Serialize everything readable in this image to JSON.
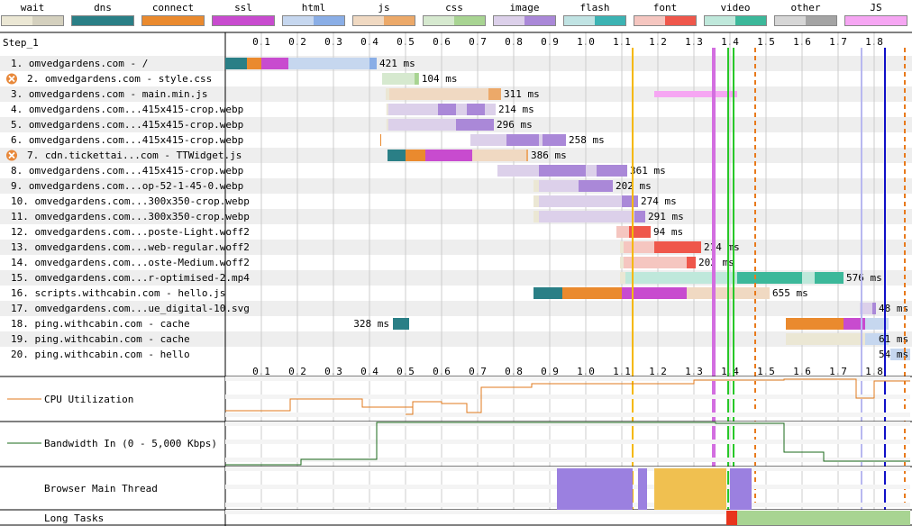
{
  "legend": [
    {
      "label": "wait",
      "color": "#ebe7d4",
      "dark": "#d4d0be"
    },
    {
      "label": "dns",
      "color": "#2a7f86",
      "dark": "#2a7f86"
    },
    {
      "label": "connect",
      "color": "#ea8a2e",
      "dark": "#ea8a2e"
    },
    {
      "label": "ssl",
      "color": "#c84bcf",
      "dark": "#c84bcf"
    },
    {
      "label": "html",
      "color": "#c6d7ef",
      "dark": "#8aaee6"
    },
    {
      "label": "js",
      "color": "#f0d9c2",
      "dark": "#eca969"
    },
    {
      "label": "css",
      "color": "#d6e9cf",
      "dark": "#a8d492"
    },
    {
      "label": "image",
      "color": "#dcd0ea",
      "dark": "#aa88d8"
    },
    {
      "label": "flash",
      "color": "#c0e3e3",
      "dark": "#3cb3b3"
    },
    {
      "label": "font",
      "color": "#f5c6c0",
      "dark": "#ef574b"
    },
    {
      "label": "video",
      "color": "#bfe8db",
      "dark": "#3cb89a"
    },
    {
      "label": "other",
      "color": "#d6d6d6",
      "dark": "#a4a4a4"
    },
    {
      "label": "JS Execution",
      "color": "#f6a6f3",
      "dark": "#f6a6f3"
    }
  ],
  "step_label": "Step_1",
  "chart_data": {
    "type": "waterfall",
    "x_ticks": [
      0.1,
      0.2,
      0.3,
      0.4,
      0.5,
      0.6,
      0.7,
      0.8,
      0.9,
      1.0,
      1.1,
      1.2,
      1.3,
      1.4,
      1.5,
      1.6,
      1.7,
      1.8
    ],
    "x_tick_labels": [
      "0.1",
      "0.2",
      "0.3",
      "0.4",
      "0.5",
      "0.6",
      "0.7",
      "0.8",
      "0.9",
      "1.0",
      "1.1",
      "1.2",
      "1.3",
      "1.4",
      "1.5",
      "1.6",
      "1.7",
      "1.8"
    ],
    "x_range": [
      0,
      1.9
    ],
    "markers": [
      {
        "t": 1.13,
        "color": "#f5b800",
        "style": "solid"
      },
      {
        "t": 1.355,
        "color": "#d36ee0",
        "style": "solid",
        "width": 4
      },
      {
        "t": 1.395,
        "color": "#28c828",
        "style": "solid"
      },
      {
        "t": 1.41,
        "color": "#28c828",
        "style": "solid"
      },
      {
        "t": 1.47,
        "color": "#e87a1c",
        "style": "dashed"
      },
      {
        "t": 1.765,
        "color": "#b8b8f0",
        "style": "solid"
      },
      {
        "t": 1.83,
        "color": "#1010c8",
        "style": "solid"
      },
      {
        "t": 1.885,
        "color": "#e87a1c",
        "style": "dashed"
      }
    ],
    "requests": [
      {
        "label": "1. omvedgardens.com - /",
        "time_label": "421 ms",
        "warn": false,
        "segments": [
          {
            "s": 0.0,
            "e": 0.06,
            "c": "#2a7f86"
          },
          {
            "s": 0.06,
            "e": 0.1,
            "c": "#ea8a2e"
          },
          {
            "s": 0.1,
            "e": 0.175,
            "c": "#c84bcf"
          },
          {
            "s": 0.175,
            "e": 0.42,
            "c": "#c6d7ef"
          },
          {
            "s": 0.4,
            "e": 0.42,
            "c": "#8aaee6"
          }
        ]
      },
      {
        "label": "2. omvedgardens.com - style.css",
        "time_label": "104 ms",
        "warn": true,
        "segments": [
          {
            "s": 0.435,
            "e": 0.537,
            "c": "#d6e9cf"
          },
          {
            "s": 0.525,
            "e": 0.537,
            "c": "#a8d492"
          }
        ]
      },
      {
        "label": "3. omvedgardens.com - main.min.js",
        "time_label": "311 ms",
        "warn": false,
        "segments": [
          {
            "s": 0.445,
            "e": 0.455,
            "c": "#ebe7d4"
          },
          {
            "s": 0.455,
            "e": 0.765,
            "c": "#f0d9c2"
          },
          {
            "s": 0.73,
            "e": 0.765,
            "c": "#eca969"
          },
          {
            "s": 1.19,
            "e": 1.42,
            "c": "#f6a6f3",
            "thin": true
          }
        ]
      },
      {
        "label": "4. omvedgardens.com...415x415-crop.webp",
        "time_label": "214 ms",
        "warn": false,
        "segments": [
          {
            "s": 0.447,
            "e": 0.452,
            "c": "#ebe7d4"
          },
          {
            "s": 0.452,
            "e": 0.75,
            "c": "#dcd0ea"
          },
          {
            "s": 0.59,
            "e": 0.64,
            "c": "#aa88d8"
          },
          {
            "s": 0.67,
            "e": 0.72,
            "c": "#aa88d8"
          }
        ]
      },
      {
        "label": "5. omvedgardens.com...415x415-crop.webp",
        "time_label": "296 ms",
        "warn": false,
        "segments": [
          {
            "s": 0.447,
            "e": 0.452,
            "c": "#ebe7d4"
          },
          {
            "s": 0.452,
            "e": 0.745,
            "c": "#dcd0ea"
          },
          {
            "s": 0.64,
            "e": 0.745,
            "c": "#aa88d8"
          }
        ]
      },
      {
        "label": "6. omvedgardens.com...415x415-crop.webp",
        "time_label": "258 ms",
        "warn": false,
        "segments": [
          {
            "s": 0.43,
            "e": 0.432,
            "c": "#ea8a2e"
          },
          {
            "s": 0.68,
            "e": 0.945,
            "c": "#dcd0ea"
          },
          {
            "s": 0.78,
            "e": 0.87,
            "c": "#aa88d8"
          },
          {
            "s": 0.88,
            "e": 0.945,
            "c": "#aa88d8"
          }
        ]
      },
      {
        "label": "7. cdn.tickettai...com - TTWidget.js",
        "time_label": "386 ms",
        "warn": true,
        "segments": [
          {
            "s": 0.45,
            "e": 0.5,
            "c": "#2a7f86"
          },
          {
            "s": 0.5,
            "e": 0.555,
            "c": "#ea8a2e"
          },
          {
            "s": 0.555,
            "e": 0.685,
            "c": "#c84bcf"
          },
          {
            "s": 0.685,
            "e": 0.84,
            "c": "#f0d9c2"
          },
          {
            "s": 0.835,
            "e": 0.84,
            "c": "#eca969"
          }
        ]
      },
      {
        "label": "8. omvedgardens.com...415x415-crop.webp",
        "time_label": "361 ms",
        "warn": false,
        "segments": [
          {
            "s": 0.755,
            "e": 1.115,
            "c": "#dcd0ea"
          },
          {
            "s": 0.87,
            "e": 1.0,
            "c": "#aa88d8"
          },
          {
            "s": 1.03,
            "e": 1.115,
            "c": "#aa88d8"
          }
        ]
      },
      {
        "label": "9. omvedgardens.com...op-52-1-45-0.webp",
        "time_label": "202 ms",
        "warn": false,
        "segments": [
          {
            "s": 0.855,
            "e": 0.87,
            "c": "#ebe7d4"
          },
          {
            "s": 0.87,
            "e": 1.075,
            "c": "#dcd0ea"
          },
          {
            "s": 0.98,
            "e": 1.075,
            "c": "#aa88d8"
          }
        ]
      },
      {
        "label": "10. omvedgardens.com...300x350-crop.webp",
        "time_label": "274 ms",
        "warn": false,
        "segments": [
          {
            "s": 0.855,
            "e": 0.87,
            "c": "#ebe7d4"
          },
          {
            "s": 0.87,
            "e": 1.145,
            "c": "#dcd0ea"
          },
          {
            "s": 1.1,
            "e": 1.145,
            "c": "#aa88d8"
          }
        ]
      },
      {
        "label": "11. omvedgardens.com...300x350-crop.webp",
        "time_label": "291 ms",
        "warn": false,
        "segments": [
          {
            "s": 0.855,
            "e": 0.87,
            "c": "#ebe7d4"
          },
          {
            "s": 0.87,
            "e": 1.165,
            "c": "#dcd0ea"
          },
          {
            "s": 1.135,
            "e": 1.165,
            "c": "#aa88d8"
          }
        ]
      },
      {
        "label": "12. omvedgardens.com...poste-Light.woff2",
        "time_label": "94 ms",
        "warn": false,
        "segments": [
          {
            "s": 1.085,
            "e": 1.18,
            "c": "#f5c6c0"
          },
          {
            "s": 1.12,
            "e": 1.18,
            "c": "#ef574b"
          }
        ]
      },
      {
        "label": "13. omvedgardens.com...web-regular.woff2",
        "time_label": "214 ms",
        "warn": false,
        "segments": [
          {
            "s": 1.095,
            "e": 1.105,
            "c": "#ebe7d4"
          },
          {
            "s": 1.105,
            "e": 1.32,
            "c": "#f5c6c0"
          },
          {
            "s": 1.19,
            "e": 1.32,
            "c": "#ef574b"
          }
        ]
      },
      {
        "label": "14. omvedgardens.com...oste-Medium.woff2",
        "time_label": "202 ms",
        "warn": false,
        "segments": [
          {
            "s": 1.095,
            "e": 1.105,
            "c": "#ebe7d4"
          },
          {
            "s": 1.105,
            "e": 1.305,
            "c": "#f5c6c0"
          },
          {
            "s": 1.28,
            "e": 1.305,
            "c": "#ef574b"
          }
        ]
      },
      {
        "label": "15. omvedgardens.com...r-optimised-2.mp4",
        "time_label": "576 ms",
        "warn": false,
        "segments": [
          {
            "s": 1.095,
            "e": 1.11,
            "c": "#ebe7d4"
          },
          {
            "s": 1.11,
            "e": 1.715,
            "c": "#bfe8db"
          },
          {
            "s": 1.42,
            "e": 1.6,
            "c": "#3cb89a"
          },
          {
            "s": 1.6,
            "e": 1.635,
            "c": "#bfe8db"
          },
          {
            "s": 1.635,
            "e": 1.715,
            "c": "#3cb89a"
          }
        ]
      },
      {
        "label": "16. scripts.withcabin.com - hello.js",
        "time_label": "655 ms",
        "warn": false,
        "segments": [
          {
            "s": 0.855,
            "e": 0.935,
            "c": "#2a7f86"
          },
          {
            "s": 0.935,
            "e": 1.1,
            "c": "#ea8a2e"
          },
          {
            "s": 1.1,
            "e": 1.28,
            "c": "#c84bcf"
          },
          {
            "s": 1.28,
            "e": 1.51,
            "c": "#f0d9c2"
          }
        ]
      },
      {
        "label": "17. omvedgardens.com...ue_digital-10.svg",
        "time_label": "48 ms",
        "warn": false,
        "segments": [
          {
            "s": 1.76,
            "e": 1.805,
            "c": "#dcd0ea"
          },
          {
            "s": 1.795,
            "e": 1.805,
            "c": "#aa88d8"
          }
        ]
      },
      {
        "label": "18. ping.withcabin.com - cache",
        "time_label": "328 ms",
        "warn": false,
        "label_left": true,
        "segments": [
          {
            "s": 0.465,
            "e": 0.51,
            "c": "#2a7f86"
          },
          {
            "s": 1.555,
            "e": 1.715,
            "c": "#ea8a2e"
          },
          {
            "s": 1.715,
            "e": 1.775,
            "c": "#c84bcf"
          },
          {
            "s": 1.775,
            "e": 1.84,
            "c": "#c6d7ef"
          }
        ]
      },
      {
        "label": "19. ping.withcabin.com - cache",
        "time_label": "61 ms",
        "warn": false,
        "segments": [
          {
            "s": 1.555,
            "e": 1.775,
            "c": "#ebe7d4"
          },
          {
            "s": 1.775,
            "e": 1.84,
            "c": "#c6d7ef"
          }
        ]
      },
      {
        "label": "20. ping.withcabin.com - hello",
        "time_label": "54 ms",
        "warn": false,
        "segments": [
          {
            "s": 1.845,
            "e": 1.9,
            "c": "#c6d7ef"
          }
        ]
      }
    ],
    "cpu_label": "CPU Utilization",
    "cpu_series": [
      [
        0,
        38
      ],
      [
        0.18,
        38
      ],
      [
        0.18,
        25
      ],
      [
        0.38,
        25
      ],
      [
        0.38,
        34
      ],
      [
        0.52,
        34
      ],
      [
        0.52,
        42
      ],
      [
        0.5,
        42
      ],
      [
        0.52,
        42
      ],
      [
        0.52,
        28
      ],
      [
        0.6,
        28
      ],
      [
        0.6,
        30
      ],
      [
        0.67,
        30
      ],
      [
        0.67,
        40
      ],
      [
        0.71,
        40
      ],
      [
        0.71,
        12
      ],
      [
        0.85,
        12
      ],
      [
        0.85,
        8
      ],
      [
        1.3,
        8
      ],
      [
        1.3,
        4
      ],
      [
        1.55,
        4
      ],
      [
        1.55,
        3
      ],
      [
        1.75,
        3
      ],
      [
        1.75,
        24
      ],
      [
        1.8,
        24
      ],
      [
        1.8,
        5
      ],
      [
        1.9,
        5
      ]
    ],
    "bandwidth_label": "Bandwidth In (0 - 5,000 Kbps)",
    "bw_series": [
      [
        0,
        48
      ],
      [
        0.21,
        48
      ],
      [
        0.21,
        42
      ],
      [
        0.42,
        42
      ],
      [
        0.42,
        1
      ],
      [
        1.36,
        1
      ],
      [
        1.36,
        2
      ],
      [
        1.55,
        2
      ],
      [
        1.55,
        34
      ],
      [
        1.66,
        34
      ],
      [
        1.66,
        44
      ],
      [
        1.9,
        44
      ]
    ],
    "main_thread_label": "Browser Main Thread",
    "main_thread_blocks": [
      {
        "s": 0.92,
        "e": 1.13,
        "c": "#9b80e0"
      },
      {
        "s": 1.19,
        "e": 1.39,
        "c": "#f0c050"
      },
      {
        "s": 1.145,
        "e": 1.17,
        "c": "#9b80e0"
      },
      {
        "s": 1.4,
        "e": 1.46,
        "c": "#9b80e0"
      }
    ],
    "long_tasks_label": "Long Tasks",
    "long_tasks": [
      {
        "s": 1.39,
        "e": 1.42,
        "c": "#e8341c"
      },
      {
        "s": 1.42,
        "e": 1.9,
        "c": "#a8d492"
      }
    ]
  }
}
